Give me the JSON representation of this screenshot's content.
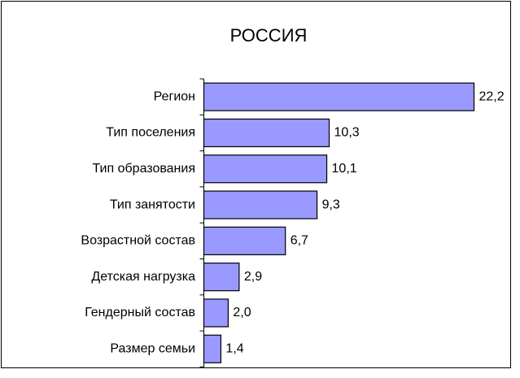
{
  "chart_data": {
    "type": "barh",
    "title": "РОССИЯ",
    "categories": [
      "Регион",
      "Тип поселения",
      "Тип образования",
      "Тип занятости",
      "Возрастной состав",
      "Детская нагрузка",
      "Гендерный состав",
      "Размер семьи"
    ],
    "values": [
      22.2,
      10.3,
      10.1,
      9.3,
      6.7,
      2.9,
      2.0,
      1.4
    ],
    "value_labels": [
      "22,2",
      "10,3",
      "10,1",
      "9,3",
      "6,7",
      "2,9",
      "2,0",
      "1,4"
    ],
    "color": "#9999ff"
  }
}
